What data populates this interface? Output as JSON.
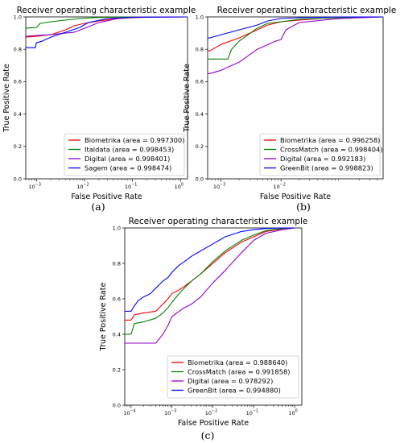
{
  "chart_data": [
    {
      "type": "line",
      "title": "Receiver operating characteristic example",
      "xlabel": "False Positive Rate",
      "ylabel": "True Positive Rate",
      "xscale": "log",
      "xlim": [
        0.0006,
        1.4
      ],
      "ylim": [
        0.0,
        1.0
      ],
      "xticks": [
        0.001,
        0.01,
        0.1,
        1
      ],
      "xtick_labels": [
        {
          "b": "10",
          "e": "−3"
        },
        {
          "b": "10",
          "e": "−2"
        },
        {
          "b": "10",
          "e": "−1"
        },
        {
          "b": "10",
          "e": "0"
        }
      ],
      "yticks": [
        "0.0",
        "0.2",
        "0.4",
        "0.6",
        "0.8",
        "1.0"
      ],
      "legend_position": "lower-right",
      "caption": "(a)",
      "series": [
        {
          "name": "Biometrika (area = 0.997300)",
          "color": "#ff0000",
          "x": [
            0.0006,
            0.001,
            0.002,
            0.004,
            0.006,
            0.01,
            0.02,
            0.05,
            0.1,
            0.3,
            1.4
          ],
          "y": [
            0.875,
            0.88,
            0.89,
            0.92,
            0.945,
            0.96,
            0.975,
            0.99,
            0.995,
            0.999,
            1.0
          ]
        },
        {
          "name": "Italdata (area = 0.998453)",
          "color": "#008000",
          "x": [
            0.0006,
            0.001,
            0.0012,
            0.002,
            0.004,
            0.008,
            0.015,
            0.03,
            0.1,
            1.4
          ],
          "y": [
            0.93,
            0.935,
            0.96,
            0.97,
            0.98,
            0.99,
            0.995,
            0.998,
            1.0,
            1.0
          ]
        },
        {
          "name": "Digital (area = 0.998401)",
          "color": "#9400d3",
          "x": [
            0.0006,
            0.001,
            0.002,
            0.004,
            0.006,
            0.01,
            0.02,
            0.05,
            0.1,
            1.4
          ],
          "y": [
            0.88,
            0.885,
            0.89,
            0.9,
            0.905,
            0.93,
            0.965,
            0.99,
            0.998,
            1.0
          ]
        },
        {
          "name": "Sagem (area = 0.998474)",
          "color": "#0000ff",
          "x": [
            0.0006,
            0.00095,
            0.001,
            0.0013,
            0.002,
            0.004,
            0.008,
            0.012,
            0.03,
            0.1,
            1.4
          ],
          "y": [
            0.81,
            0.81,
            0.84,
            0.85,
            0.875,
            0.905,
            0.935,
            0.965,
            0.99,
            0.998,
            1.0
          ]
        }
      ]
    },
    {
      "type": "line",
      "title": "Receiver operating characteristic example",
      "xlabel": "False Positive Rate",
      "ylabel": "True Positive Rate",
      "xscale": "log",
      "xlim": [
        0.0006,
        0.5
      ],
      "ylim": [
        0.0,
        1.0
      ],
      "xticks": [
        0.001,
        0.01
      ],
      "xtick_labels": [
        {
          "b": "10",
          "e": "−3"
        },
        {
          "b": "10",
          "e": "−2"
        }
      ],
      "yticks": [
        "0.0",
        "0.2",
        "0.4",
        "0.6",
        "0.8",
        "1.0"
      ],
      "legend_position": "lower-right",
      "caption": "(b)",
      "series": [
        {
          "name": "Biometrika (area = 0.996258)",
          "color": "#ff0000",
          "x": [
            0.0006,
            0.00065,
            0.001,
            0.002,
            0.004,
            0.006,
            0.01,
            0.02,
            0.05,
            0.1,
            0.5
          ],
          "y": [
            0.79,
            0.79,
            0.83,
            0.87,
            0.92,
            0.95,
            0.97,
            0.98,
            0.99,
            0.995,
            1.0
          ]
        },
        {
          "name": "CrossMatch (area = 0.998404)",
          "color": "#008000",
          "x": [
            0.0006,
            0.00065,
            0.0013,
            0.0015,
            0.002,
            0.004,
            0.006,
            0.01,
            0.02,
            0.05,
            0.1,
            0.5
          ],
          "y": [
            0.74,
            0.74,
            0.74,
            0.8,
            0.85,
            0.93,
            0.96,
            0.97,
            0.985,
            0.99,
            0.995,
            1.0
          ]
        },
        {
          "name": "Digital (area = 0.992183)",
          "color": "#9400d3",
          "x": [
            0.0006,
            0.00065,
            0.001,
            0.002,
            0.004,
            0.008,
            0.01,
            0.012,
            0.02,
            0.05,
            0.1,
            0.5
          ],
          "y": [
            0.65,
            0.65,
            0.67,
            0.72,
            0.8,
            0.85,
            0.86,
            0.92,
            0.965,
            0.98,
            0.99,
            1.0
          ]
        },
        {
          "name": "GreenBit (area = 0.998823)",
          "color": "#0000ff",
          "x": [
            0.0006,
            0.00065,
            0.001,
            0.002,
            0.004,
            0.006,
            0.01,
            0.02,
            0.05,
            0.1,
            0.5
          ],
          "y": [
            0.87,
            0.87,
            0.89,
            0.92,
            0.95,
            0.975,
            0.99,
            0.995,
            0.998,
            1.0,
            1.0
          ]
        }
      ]
    },
    {
      "type": "line",
      "title": "Receiver operating characteristic example",
      "xlabel": "False Positive Rate",
      "ylabel": "True Positive Rate",
      "xscale": "log",
      "xlim": [
        7e-05,
        1.5
      ],
      "ylim": [
        0.0,
        1.0
      ],
      "xticks": [
        0.0001,
        0.001,
        0.01,
        0.1,
        1
      ],
      "xtick_labels": [
        {
          "b": "10",
          "e": "−4"
        },
        {
          "b": "10",
          "e": "−3"
        },
        {
          "b": "10",
          "e": "−2"
        },
        {
          "b": "10",
          "e": "−1"
        },
        {
          "b": "10",
          "e": "0"
        }
      ],
      "yticks": [
        "0.0",
        "0.2",
        "0.4",
        "0.6",
        "0.8",
        "1.0"
      ],
      "legend_position": "lower-right",
      "caption": "(c)",
      "series": [
        {
          "name": "Biometrika (area = 0.988640)",
          "color": "#ff0000",
          "x": [
            7e-05,
            0.0001,
            0.00012,
            0.0002,
            0.0004,
            0.0006,
            0.0008,
            0.001,
            0.0015,
            0.002,
            0.003,
            0.005,
            0.01,
            0.02,
            0.05,
            0.1,
            0.2,
            0.5,
            1.0
          ],
          "y": [
            0.48,
            0.48,
            0.51,
            0.52,
            0.53,
            0.57,
            0.6,
            0.63,
            0.65,
            0.67,
            0.7,
            0.74,
            0.8,
            0.86,
            0.92,
            0.95,
            0.98,
            0.995,
            1.0
          ]
        },
        {
          "name": "CrossMatch (area = 0.991858)",
          "color": "#008000",
          "x": [
            7e-05,
            0.0001,
            0.00012,
            0.0002,
            0.0004,
            0.0006,
            0.0008,
            0.001,
            0.0015,
            0.002,
            0.003,
            0.005,
            0.01,
            0.02,
            0.05,
            0.1,
            0.2,
            0.5,
            1.0
          ],
          "y": [
            0.4,
            0.4,
            0.46,
            0.47,
            0.49,
            0.52,
            0.55,
            0.58,
            0.63,
            0.66,
            0.7,
            0.74,
            0.81,
            0.87,
            0.93,
            0.96,
            0.985,
            0.997,
            1.0
          ]
        },
        {
          "name": "Digital (area = 0.978292)",
          "color": "#9400d3",
          "x": [
            7e-05,
            0.0002,
            0.0004,
            0.0006,
            0.0008,
            0.001,
            0.0015,
            0.002,
            0.003,
            0.005,
            0.01,
            0.02,
            0.05,
            0.1,
            0.2,
            0.5,
            1.0
          ],
          "y": [
            0.35,
            0.35,
            0.35,
            0.4,
            0.45,
            0.5,
            0.53,
            0.55,
            0.57,
            0.61,
            0.69,
            0.76,
            0.86,
            0.93,
            0.97,
            0.99,
            1.0
          ]
        },
        {
          "name": "GreenBit (area = 0.994880)",
          "color": "#0000ff",
          "x": [
            7e-05,
            0.0001,
            0.00012,
            0.00015,
            0.0002,
            0.0003,
            0.0004,
            0.0006,
            0.0008,
            0.001,
            0.0015,
            0.002,
            0.003,
            0.005,
            0.01,
            0.02,
            0.05,
            0.1,
            0.2,
            0.5,
            1.0
          ],
          "y": [
            0.53,
            0.53,
            0.56,
            0.59,
            0.61,
            0.63,
            0.66,
            0.7,
            0.72,
            0.75,
            0.79,
            0.81,
            0.84,
            0.87,
            0.91,
            0.95,
            0.98,
            0.99,
            0.997,
            1.0,
            1.0
          ]
        }
      ]
    }
  ]
}
